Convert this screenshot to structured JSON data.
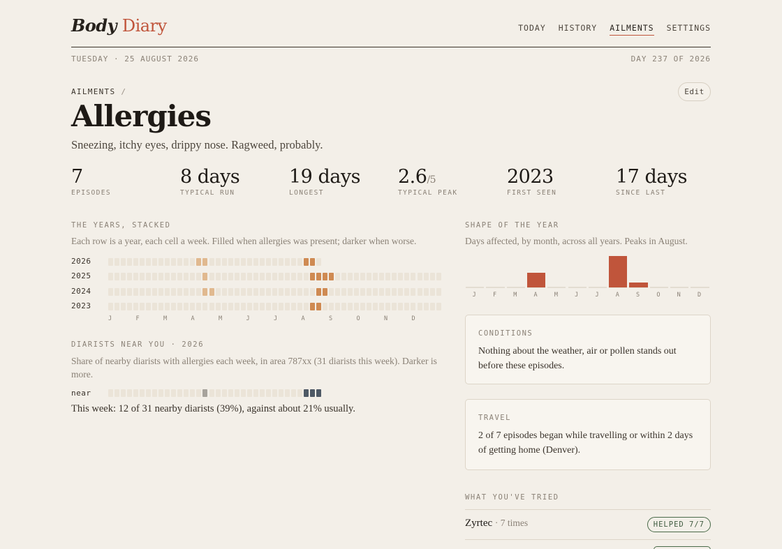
{
  "app": {
    "logo_first": "Body",
    "logo_second": "Diary"
  },
  "nav": {
    "items": [
      "TODAY",
      "HISTORY",
      "AILMENTS",
      "SETTINGS"
    ],
    "active": "AILMENTS"
  },
  "dateline": {
    "date": "TUESDAY · 25 AUGUST 2026",
    "day": "DAY 237 OF 2026"
  },
  "breadcrumb": {
    "section": "AILMENTS",
    "sep": "/"
  },
  "edit_label": "Edit",
  "ailment": {
    "title": "Allergies",
    "subtitle": "Sneezing, itchy eyes, drippy nose. Ragweed, probably."
  },
  "stats": [
    {
      "value": "7",
      "denom": "",
      "label": "EPISODES"
    },
    {
      "value": "8 days",
      "denom": "",
      "label": "TYPICAL RUN"
    },
    {
      "value": "19 days",
      "denom": "",
      "label": "LONGEST"
    },
    {
      "value": "2.6",
      "denom": "/5",
      "label": "TYPICAL PEAK"
    },
    {
      "value": "2023",
      "denom": "",
      "label": "FIRST SEEN"
    },
    {
      "value": "17 days",
      "denom": "",
      "label": "SINCE LAST"
    }
  ],
  "years": {
    "title": "THE YEARS, STACKED",
    "desc": "Each row is a year, each cell a week. Filled when allergies was present; darker when worse.",
    "rows": [
      {
        "year": "2026",
        "filled": [
          {
            "w": 14,
            "s": 2
          },
          {
            "w": 15,
            "s": 2
          },
          {
            "w": 31,
            "s": 3
          },
          {
            "w": 32,
            "s": 3
          }
        ],
        "weeks_shown": 34
      },
      {
        "year": "2025",
        "filled": [
          {
            "w": 15,
            "s": 2
          },
          {
            "w": 32,
            "s": 3
          },
          {
            "w": 33,
            "s": 3
          },
          {
            "w": 34,
            "s": 3
          },
          {
            "w": 35,
            "s": 3
          }
        ],
        "weeks_shown": 53
      },
      {
        "year": "2024",
        "filled": [
          {
            "w": 15,
            "s": 2
          },
          {
            "w": 16,
            "s": 2
          },
          {
            "w": 33,
            "s": 3
          },
          {
            "w": 34,
            "s": 3
          }
        ],
        "weeks_shown": 53
      },
      {
        "year": "2023",
        "filled": [
          {
            "w": 32,
            "s": 3
          },
          {
            "w": 33,
            "s": 3
          }
        ],
        "weeks_shown": 53
      }
    ],
    "months": [
      "J",
      "F",
      "M",
      "A",
      "M",
      "J",
      "J",
      "A",
      "S",
      "O",
      "N",
      "D"
    ]
  },
  "near": {
    "title": "DIARISTS NEAR YOU · 2026",
    "desc": "Share of nearby diarists with allergies each week, in area 787xx (31 diarists this week). Darker is more.",
    "row_label": "near",
    "weeks_shown": 34,
    "filled": [
      {
        "w": 15,
        "s": 1
      },
      {
        "w": 31,
        "s": 4
      },
      {
        "w": 32,
        "s": 4
      },
      {
        "w": 33,
        "s": 4
      }
    ],
    "this_week": "This week: 12 of 31 nearby diarists (39%), against about 21% usually."
  },
  "shape": {
    "title": "SHAPE OF THE YEAR",
    "desc": "Days affected, by month, across all years. Peaks in August."
  },
  "chart_data": {
    "type": "bar",
    "categories": [
      "J",
      "F",
      "M",
      "A",
      "M",
      "J",
      "J",
      "A",
      "S",
      "O",
      "N",
      "D"
    ],
    "values": [
      0,
      0,
      0,
      9,
      0,
      0,
      0,
      19,
      3,
      0,
      0,
      0
    ],
    "title": "SHAPE OF THE YEAR",
    "xlabel": "",
    "ylabel": "",
    "ylim": [
      0,
      19
    ],
    "color": "#c0553b"
  },
  "conditions": {
    "title": "CONDITIONS",
    "body": "Nothing about the weather, air or pollen stands out before these episodes."
  },
  "travel": {
    "title": "TRAVEL",
    "body": "2 of 7 episodes began while travelling or within 2 days of getting home (Denver)."
  },
  "tried": {
    "title": "WHAT YOU'VE TRIED",
    "items": [
      {
        "name": "Zyrtec",
        "count": "· 7 times",
        "badge": "HELPED 7/7"
      }
    ]
  },
  "colors": {
    "accent": "#c0553b",
    "cell_empty": "#ebe4d8",
    "cell_mild": "#e1b98f",
    "cell_mid": "#d9a06b",
    "cell_strong": "#cf8a52",
    "near_light": "#a7a39c",
    "near_dark": "#4e5965"
  }
}
